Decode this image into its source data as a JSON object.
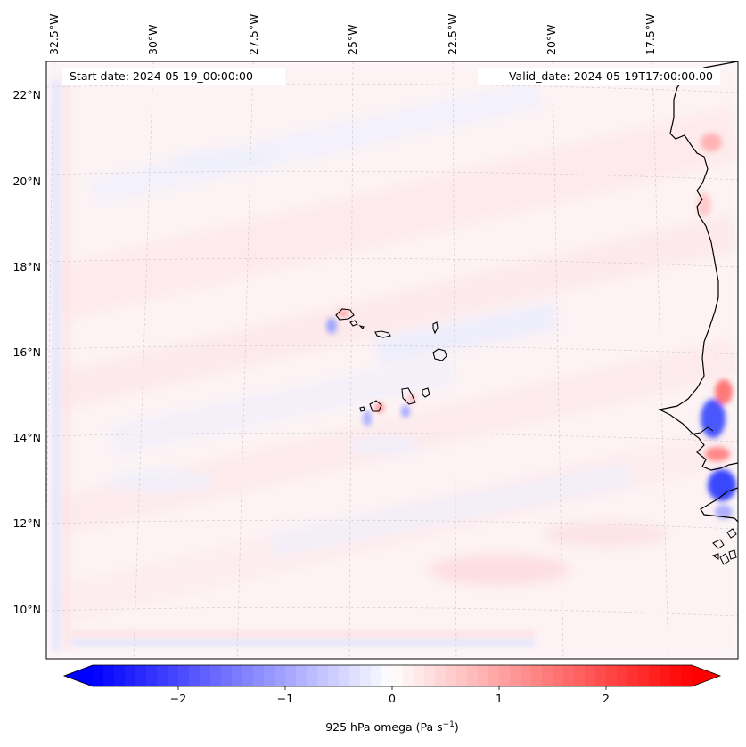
{
  "annotations": {
    "start_date": "Start date: 2024-05-19_00:00:00",
    "valid_date": "Valid_date: 2024-05-19T17:00:00.00"
  },
  "longitude_labels": [
    "32.5°W",
    "30°W",
    "27.5°W",
    "25°W",
    "22.5°W",
    "20°W",
    "17.5°W"
  ],
  "latitude_labels": [
    "22°N",
    "20°N",
    "18°N",
    "16°N",
    "14°N",
    "12°N",
    "10°N"
  ],
  "colorbar": {
    "label_prefix": "925 hPa omega (Pa s",
    "label_exp": "−1",
    "label_suffix": ")",
    "ticks": [
      {
        "value": -2,
        "label": "−2"
      },
      {
        "value": -1,
        "label": "−1"
      },
      {
        "value": 0,
        "label": "0"
      },
      {
        "value": 1,
        "label": "1"
      },
      {
        "value": 2,
        "label": "2"
      }
    ],
    "vmin": -2.8,
    "vmax": 2.8,
    "colors": {
      "negative": "#0000ff",
      "zero": "#ffffff",
      "positive": "#ff0000"
    }
  },
  "colors": {
    "coastline": "#000000",
    "gridline": "#bdbdbd"
  }
}
